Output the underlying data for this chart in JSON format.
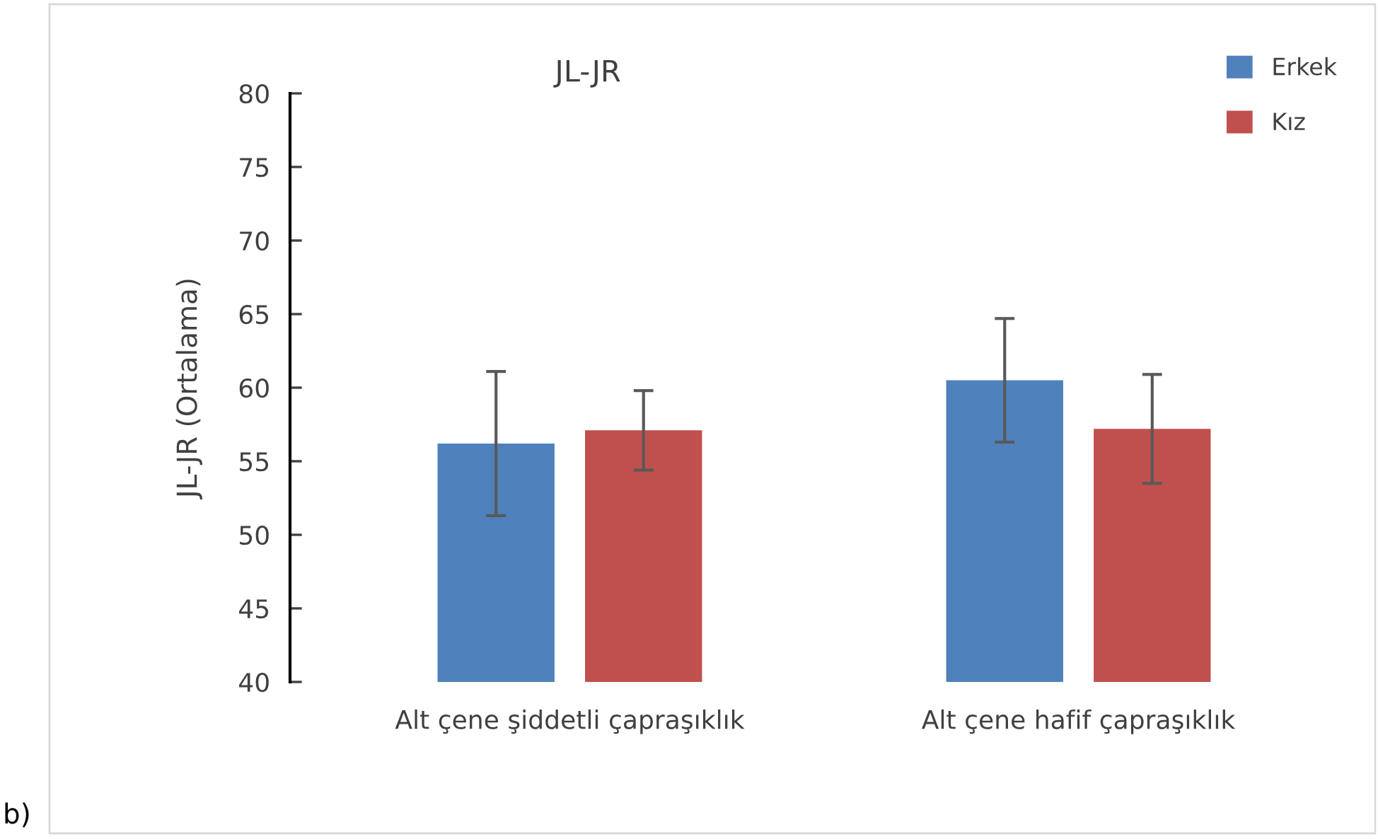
{
  "chart_data": {
    "type": "bar",
    "title": "JL-JR",
    "ylabel": "JL-JR (Ortalama)",
    "categories": [
      "Alt çene şiddetli çapraşıklık",
      "Alt çene hafif çapraşıklık"
    ],
    "series": [
      {
        "name": "Erkek",
        "color": "#4f81bd",
        "values": [
          56.2,
          60.5
        ],
        "errors": [
          4.9,
          4.2
        ]
      },
      {
        "name": "Kız",
        "color": "#c0504d",
        "values": [
          57.1,
          57.2
        ],
        "errors": [
          2.7,
          3.7
        ]
      }
    ],
    "ylim": [
      40,
      80
    ],
    "yticks": [
      40,
      45,
      50,
      55,
      60,
      65,
      70,
      75,
      80
    ],
    "grid": false,
    "legend": "top right",
    "annotations": [
      "b)"
    ]
  }
}
